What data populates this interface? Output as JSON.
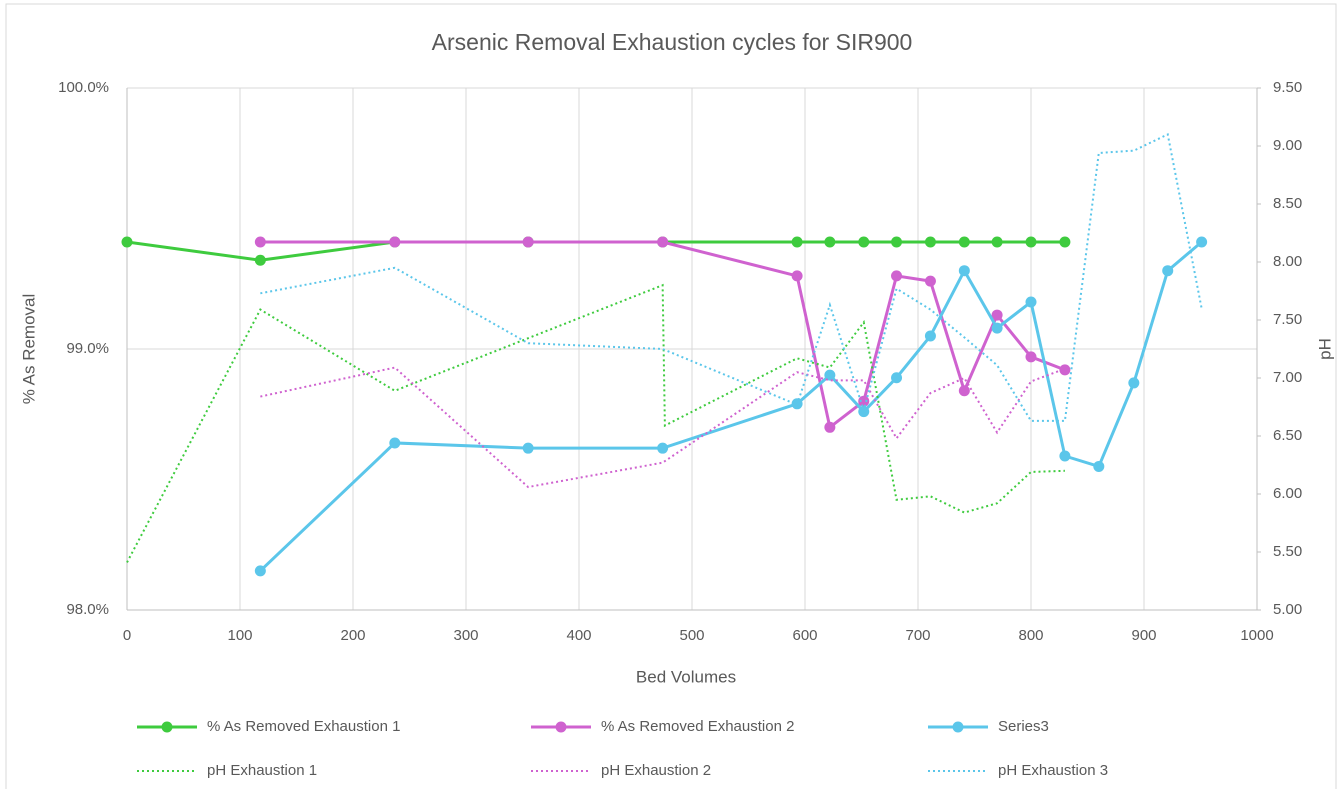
{
  "chart_data": {
    "type": "line",
    "title": "Arsenic Removal Exhaustion cycles for SIR900",
    "x_label": "Bed Volumes",
    "y_label": "% As Removal",
    "y2_label": "pH",
    "xlim": [
      0,
      1000
    ],
    "xticks": [
      0,
      100,
      200,
      300,
      400,
      500,
      600,
      700,
      800,
      900,
      1000
    ],
    "ylim": [
      98,
      100
    ],
    "yticks": [
      {
        "value": 98,
        "label": "98.0%"
      },
      {
        "value": 99,
        "label": "99.0%"
      },
      {
        "value": 100,
        "label": "100.0%"
      }
    ],
    "y2lim": [
      5,
      9.5
    ],
    "y2ticks": [
      {
        "value": 5,
        "label": "5.00"
      },
      {
        "value": 5.5,
        "label": "5.50"
      },
      {
        "value": 6,
        "label": "6.00"
      },
      {
        "value": 6.5,
        "label": "6.50"
      },
      {
        "value": 7,
        "label": "7.00"
      },
      {
        "value": 7.5,
        "label": "7.50"
      },
      {
        "value": 8,
        "label": "8.00"
      },
      {
        "value": 8.5,
        "label": "8.50"
      },
      {
        "value": 9,
        "label": "9.00"
      },
      {
        "value": 9.5,
        "label": "9.50"
      }
    ],
    "grid": true,
    "legend": "bottom",
    "series": [
      {
        "name": "% As Removed Exhaustion 1",
        "color": "#3ecb3e",
        "line_style": "solid",
        "marker": true,
        "x": [
          0,
          118,
          237,
          355,
          474,
          593,
          622,
          652,
          681,
          711,
          741,
          770,
          800,
          830
        ],
        "values": [
          99.41,
          99.34,
          99.41,
          99.41,
          99.41,
          99.41,
          99.41,
          99.41,
          99.41,
          99.41,
          99.41,
          99.41,
          99.41,
          99.41
        ]
      },
      {
        "name": "% As Removed Exhaustion 2",
        "color": "#cf62cf",
        "line_style": "solid",
        "marker": true,
        "x": [
          118,
          237,
          355,
          474,
          593,
          622,
          652,
          681,
          711,
          741,
          770,
          800,
          830
        ],
        "values": [
          99.41,
          99.41,
          99.41,
          99.41,
          99.28,
          98.7,
          98.8,
          99.28,
          99.26,
          98.84,
          99.13,
          98.97,
          98.92
        ]
      },
      {
        "name": "Series3",
        "color": "#5bc6ea",
        "line_style": "solid",
        "marker": true,
        "x": [
          118,
          237,
          355,
          474,
          593,
          622,
          652,
          681,
          711,
          741,
          770,
          800,
          830,
          860,
          891,
          921,
          951
        ],
        "values": [
          98.15,
          98.64,
          98.62,
          98.62,
          98.79,
          98.9,
          98.76,
          98.89,
          99.05,
          99.3,
          99.08,
          99.18,
          98.59,
          98.55,
          98.87,
          99.3,
          99.41
        ]
      },
      {
        "name": "pH Exhaustion 1",
        "color": "#3ecb3e",
        "line_style": "dotted",
        "marker": false,
        "axis": "y2",
        "x": [
          0,
          118,
          237,
          474,
          476,
          593,
          622,
          652,
          681,
          711,
          741,
          770,
          800,
          830
        ],
        "values": [
          5.41,
          7.59,
          6.89,
          7.8,
          6.59,
          7.17,
          7.09,
          7.48,
          5.95,
          5.98,
          5.84,
          5.92,
          6.19,
          6.2
        ]
      },
      {
        "name": "pH Exhaustion 2",
        "color": "#cf62cf",
        "line_style": "dotted",
        "marker": false,
        "axis": "y2",
        "x": [
          118,
          237,
          355,
          474,
          593,
          622,
          652,
          681,
          711,
          741,
          770,
          800,
          830
        ],
        "values": [
          6.84,
          7.09,
          6.06,
          6.27,
          7.05,
          6.98,
          6.98,
          6.48,
          6.87,
          7.0,
          6.53,
          6.97,
          7.08
        ]
      },
      {
        "name": "pH Exhaustion 3",
        "color": "#5bc6ea",
        "line_style": "dotted",
        "marker": false,
        "axis": "y2",
        "x": [
          118,
          237,
          355,
          474,
          593,
          622,
          652,
          681,
          711,
          741,
          770,
          800,
          830,
          860,
          891,
          921,
          951
        ],
        "values": [
          7.73,
          7.95,
          7.3,
          7.25,
          6.77,
          7.63,
          6.72,
          7.77,
          7.59,
          7.35,
          7.11,
          6.63,
          6.63,
          8.94,
          8.96,
          9.1,
          7.6
        ]
      }
    ]
  }
}
